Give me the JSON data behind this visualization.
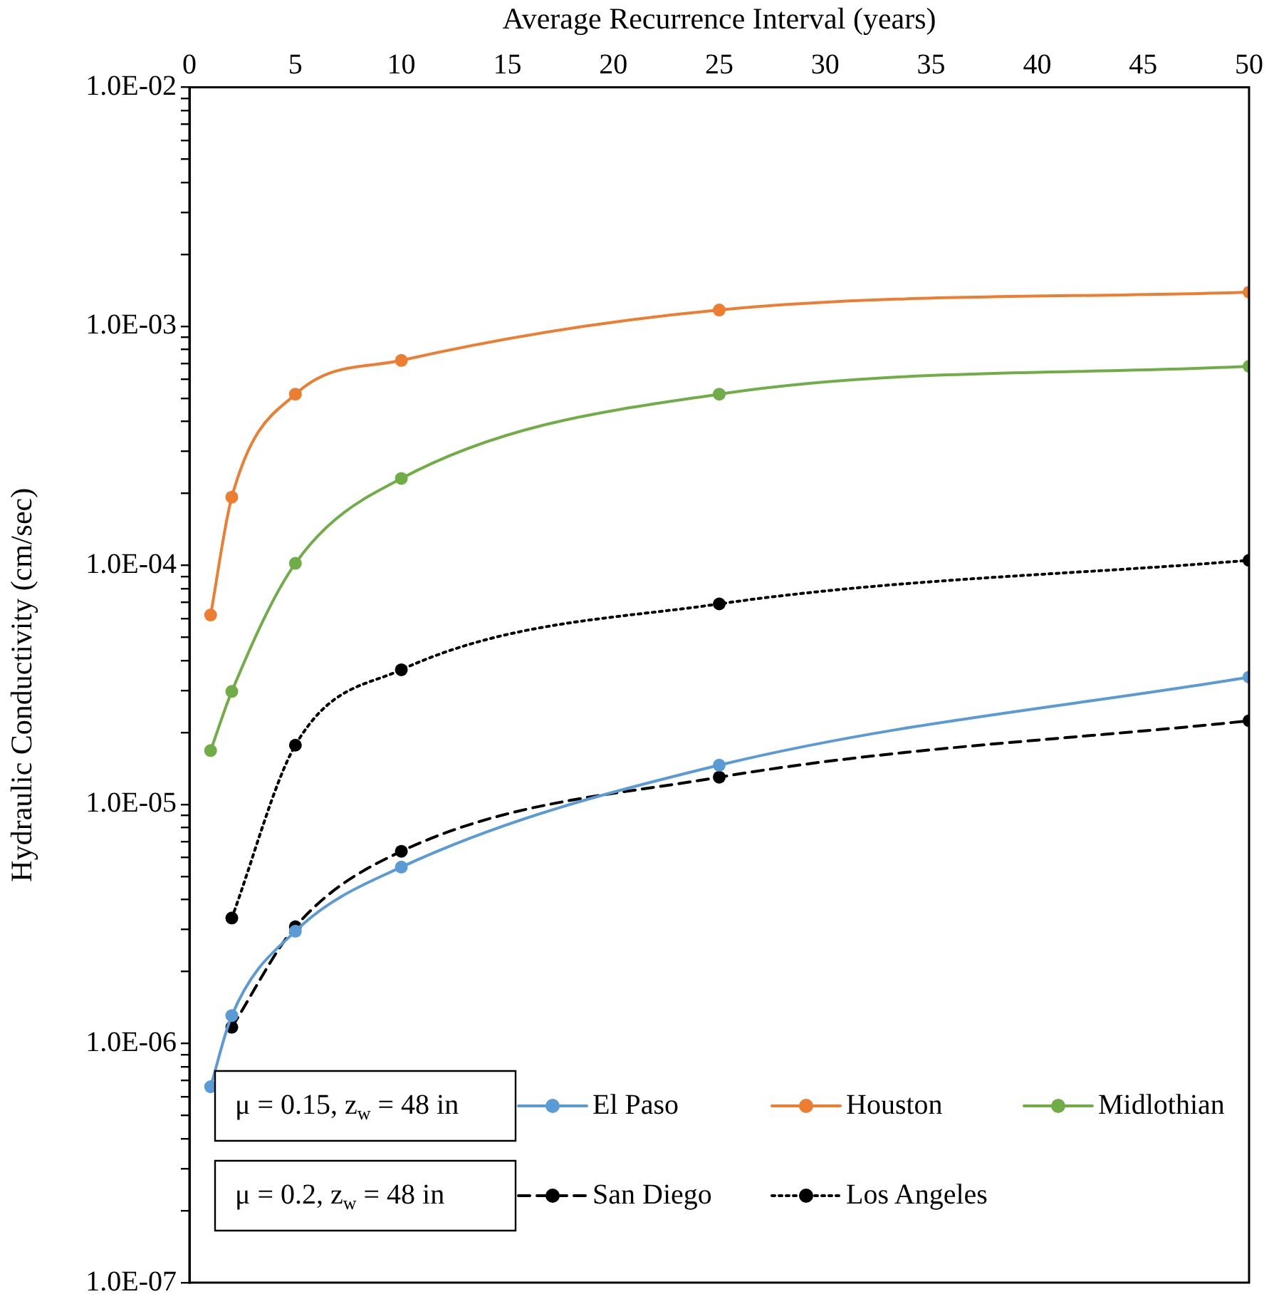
{
  "chart_data": {
    "type": "line",
    "xlabel": "Average Recurrence Interval (years)",
    "ylabel": "Hydraulic Conductivity (cm/sec)",
    "xlim": [
      0,
      50
    ],
    "xticks": [
      0,
      5,
      10,
      15,
      20,
      25,
      30,
      35,
      40,
      45,
      50
    ],
    "ylim": [
      1e-07,
      0.01
    ],
    "log": "y",
    "yticks": [
      {
        "value": 1e-07,
        "label": "1.0E-07"
      },
      {
        "value": 2e-07,
        "label": null
      },
      {
        "value": 3e-07,
        "label": null
      },
      {
        "value": 4e-07,
        "label": null
      },
      {
        "value": 5e-07,
        "label": null
      },
      {
        "value": 6e-07,
        "label": null
      },
      {
        "value": 7e-07,
        "label": null
      },
      {
        "value": 8e-07,
        "label": null
      },
      {
        "value": 9e-07,
        "label": null
      },
      {
        "value": 1e-06,
        "label": "1.0E-06"
      },
      {
        "value": 2e-06,
        "label": null
      },
      {
        "value": 3e-06,
        "label": null
      },
      {
        "value": 4e-06,
        "label": null
      },
      {
        "value": 5e-06,
        "label": null
      },
      {
        "value": 6e-06,
        "label": null
      },
      {
        "value": 7e-06,
        "label": null
      },
      {
        "value": 8e-06,
        "label": null
      },
      {
        "value": 9e-06,
        "label": null
      },
      {
        "value": 1e-05,
        "label": "1.0E-05"
      },
      {
        "value": 2e-05,
        "label": null
      },
      {
        "value": 3e-05,
        "label": null
      },
      {
        "value": 4e-05,
        "label": null
      },
      {
        "value": 5e-05,
        "label": null
      },
      {
        "value": 6e-05,
        "label": null
      },
      {
        "value": 7e-05,
        "label": null
      },
      {
        "value": 8e-05,
        "label": null
      },
      {
        "value": 9e-05,
        "label": null
      },
      {
        "value": 0.0001,
        "label": "1.0E-04"
      },
      {
        "value": 0.0002,
        "label": null
      },
      {
        "value": 0.0003,
        "label": null
      },
      {
        "value": 0.0004,
        "label": null
      },
      {
        "value": 0.0005,
        "label": null
      },
      {
        "value": 0.0006,
        "label": null
      },
      {
        "value": 0.0007,
        "label": null
      },
      {
        "value": 0.0008,
        "label": null
      },
      {
        "value": 0.0009,
        "label": null
      },
      {
        "value": 0.001,
        "label": "1.0E-03"
      },
      {
        "value": 0.002,
        "label": null
      },
      {
        "value": 0.003,
        "label": null
      },
      {
        "value": 0.004,
        "label": null
      },
      {
        "value": 0.005,
        "label": null
      },
      {
        "value": 0.006,
        "label": null
      },
      {
        "value": 0.007,
        "label": null
      },
      {
        "value": 0.008,
        "label": null
      },
      {
        "value": 0.009,
        "label": null
      },
      {
        "value": 0.01,
        "label": "1.0E-02"
      }
    ],
    "grid": false,
    "legend": "bottom",
    "marker": "circle",
    "annotations": [
      "μ = 0.15, z$_{w}$ = 48 in",
      "μ = 0.2, z$_{w}$ = 48 in"
    ],
    "series": [
      {
        "name": "El Paso",
        "color": "#5b9bd5",
        "line_style": "solid",
        "x": [
          1,
          2,
          5,
          10,
          25,
          50
        ],
        "values": [
          6.6e-07,
          1.31e-06,
          2.95e-06,
          5.47e-06,
          1.46e-05,
          3.41e-05
        ]
      },
      {
        "name": "Houston",
        "color": "#ed7d31",
        "line_style": "solid",
        "x": [
          1,
          2,
          5,
          10,
          25,
          50
        ],
        "values": [
          6.2e-05,
          0.000193,
          0.00052,
          0.00072,
          0.00117,
          0.00139
        ]
      },
      {
        "name": "Midlothian",
        "color": "#70ad47",
        "line_style": "solid",
        "x": [
          1,
          2,
          5,
          10,
          25,
          50
        ],
        "values": [
          1.68e-05,
          2.97e-05,
          0.000102,
          0.000231,
          0.00052,
          0.00068
        ]
      },
      {
        "name": "San Diego",
        "color": "#000000",
        "line_style": "dashed",
        "x": [
          2,
          5,
          10,
          25,
          50
        ],
        "values": [
          1.17e-06,
          3.08e-06,
          6.37e-06,
          1.3e-05,
          2.24e-05
        ]
      },
      {
        "name": "Los Angeles",
        "color": "#000000",
        "line_style": "dotted",
        "x": [
          2,
          5,
          10,
          25,
          50
        ],
        "values": [
          3.35e-06,
          1.77e-05,
          3.66e-05,
          6.9e-05,
          0.000105
        ]
      }
    ]
  }
}
